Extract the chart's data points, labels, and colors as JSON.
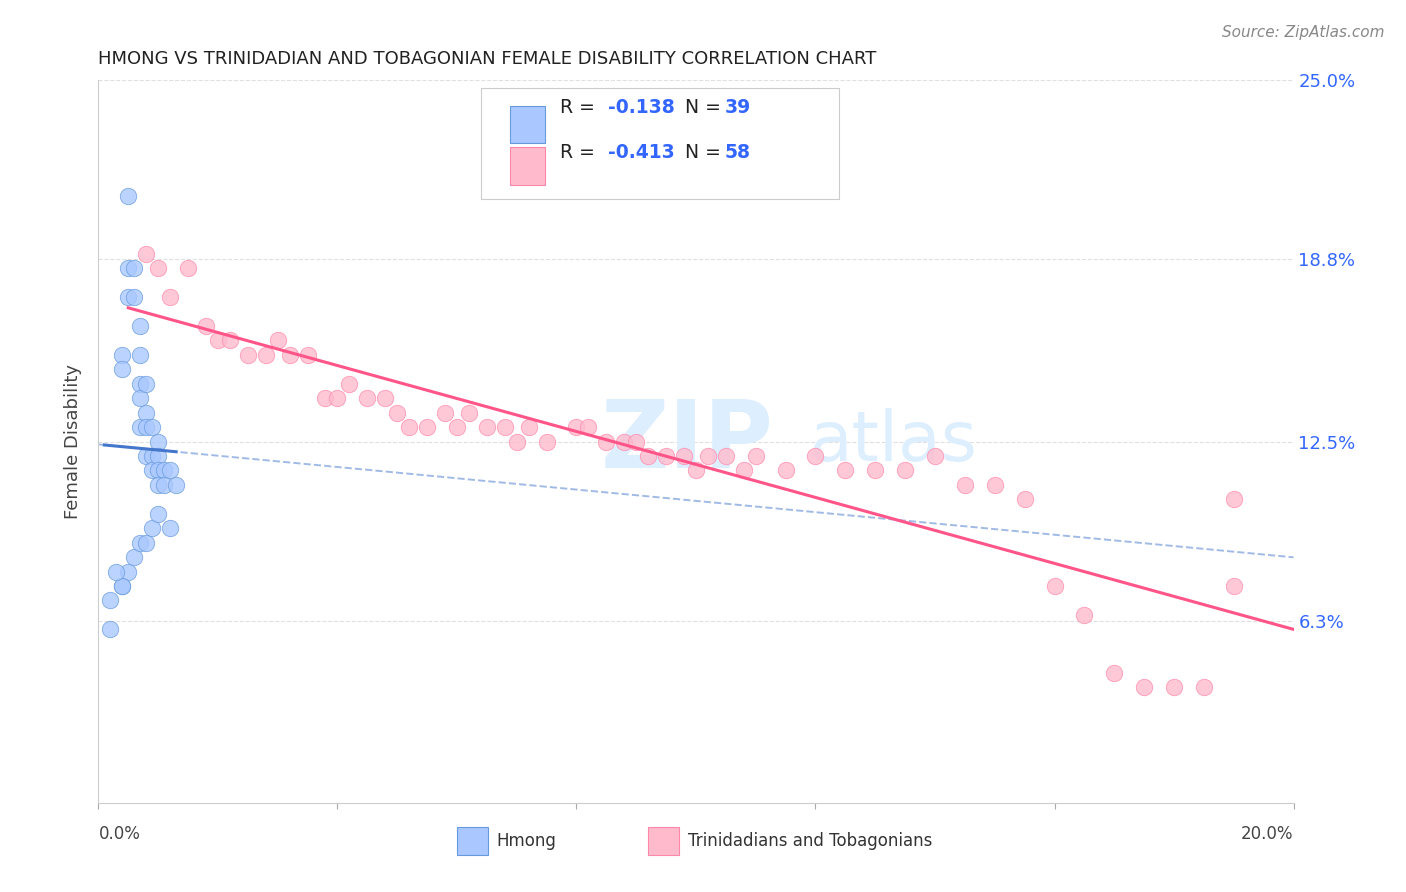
{
  "title": "HMONG VS TRINIDADIAN AND TOBAGONIAN FEMALE DISABILITY CORRELATION CHART",
  "source": "Source: ZipAtlas.com",
  "ylabel": "Female Disability",
  "xlim": [
    0.0,
    0.2
  ],
  "ylim": [
    0.0,
    0.25
  ],
  "yticks": [
    0.063,
    0.125,
    0.188,
    0.25
  ],
  "ytick_labels": [
    "6.3%",
    "12.5%",
    "18.8%",
    "25.0%"
  ],
  "legend_label1": "Hmong",
  "legend_label2": "Trinidadians and Tobagonians",
  "r1": -0.138,
  "n1": 39,
  "r2": -0.413,
  "n2": 58,
  "color_blue_fill": "#aac8ff",
  "color_blue_edge": "#6699dd",
  "color_pink_fill": "#ffbbcc",
  "color_pink_edge": "#ff88aa",
  "color_line_blue": "#4477cc",
  "color_line_pink": "#ff5588",
  "legend_text_color": "#3366ff",
  "watermark_zip": "ZIP",
  "watermark_atlas": "atlas",
  "grid_color": "#dddddd",
  "title_color": "#222222",
  "source_color": "#888888",
  "hmong_x": [
    0.002,
    0.005,
    0.004,
    0.004,
    0.005,
    0.005,
    0.006,
    0.006,
    0.007,
    0.007,
    0.007,
    0.007,
    0.007,
    0.008,
    0.008,
    0.008,
    0.008,
    0.009,
    0.009,
    0.009,
    0.01,
    0.01,
    0.01,
    0.01,
    0.011,
    0.011,
    0.012,
    0.013,
    0.004,
    0.005,
    0.006,
    0.007,
    0.008,
    0.009,
    0.01,
    0.012,
    0.004,
    0.003,
    0.002
  ],
  "hmong_y": [
    0.06,
    0.21,
    0.155,
    0.15,
    0.185,
    0.175,
    0.185,
    0.175,
    0.165,
    0.155,
    0.145,
    0.14,
    0.13,
    0.145,
    0.135,
    0.13,
    0.12,
    0.13,
    0.12,
    0.115,
    0.125,
    0.12,
    0.115,
    0.11,
    0.115,
    0.11,
    0.115,
    0.11,
    0.075,
    0.08,
    0.085,
    0.09,
    0.09,
    0.095,
    0.1,
    0.095,
    0.075,
    0.08,
    0.07
  ],
  "trini_x": [
    0.008,
    0.01,
    0.012,
    0.015,
    0.018,
    0.02,
    0.022,
    0.025,
    0.028,
    0.03,
    0.032,
    0.035,
    0.038,
    0.04,
    0.042,
    0.045,
    0.048,
    0.05,
    0.052,
    0.055,
    0.058,
    0.06,
    0.062,
    0.065,
    0.068,
    0.07,
    0.072,
    0.075,
    0.08,
    0.082,
    0.085,
    0.088,
    0.09,
    0.092,
    0.095,
    0.098,
    0.1,
    0.102,
    0.105,
    0.108,
    0.11,
    0.115,
    0.12,
    0.125,
    0.13,
    0.135,
    0.14,
    0.145,
    0.15,
    0.155,
    0.16,
    0.165,
    0.17,
    0.175,
    0.18,
    0.185,
    0.19,
    0.19
  ],
  "trini_y": [
    0.19,
    0.185,
    0.175,
    0.185,
    0.165,
    0.16,
    0.16,
    0.155,
    0.155,
    0.16,
    0.155,
    0.155,
    0.14,
    0.14,
    0.145,
    0.14,
    0.14,
    0.135,
    0.13,
    0.13,
    0.135,
    0.13,
    0.135,
    0.13,
    0.13,
    0.125,
    0.13,
    0.125,
    0.13,
    0.13,
    0.125,
    0.125,
    0.125,
    0.12,
    0.12,
    0.12,
    0.115,
    0.12,
    0.12,
    0.115,
    0.12,
    0.115,
    0.12,
    0.115,
    0.115,
    0.115,
    0.12,
    0.11,
    0.11,
    0.105,
    0.075,
    0.065,
    0.045,
    0.04,
    0.04,
    0.04,
    0.105,
    0.075
  ]
}
